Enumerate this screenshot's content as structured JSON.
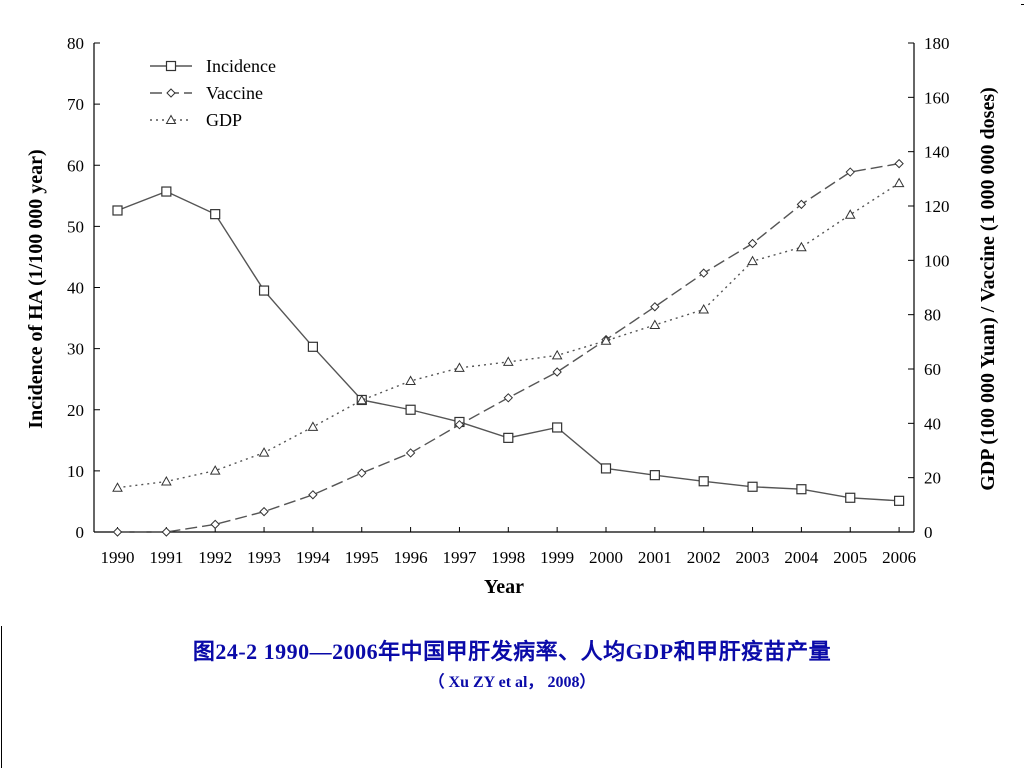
{
  "caption": "图24-2   1990—2006年中国甲肝发病率、人均GDP和甲肝疫苗产量",
  "source": "（ Xu ZY et al， 2008）",
  "chart_data": {
    "type": "line",
    "xlabel": "Year",
    "ylabel_left": "Incidence of HA (1/100 000 year)",
    "ylabel_right": "GDP (100 000 Yuan) / Vaccine (1 000 000 doses)",
    "x": [
      1990,
      1991,
      1992,
      1993,
      1994,
      1995,
      1996,
      1997,
      1998,
      1999,
      2000,
      2001,
      2002,
      2003,
      2004,
      2005,
      2006
    ],
    "ylim_left": [
      0,
      80
    ],
    "yticks_left": [
      0,
      10,
      20,
      30,
      40,
      50,
      60,
      70,
      80
    ],
    "ylim_right": [
      0,
      180
    ],
    "yticks_right": [
      0,
      20,
      40,
      60,
      80,
      100,
      120,
      140,
      160,
      180
    ],
    "grid": false,
    "legend_position": "top-left",
    "series": [
      {
        "name": "Incidence",
        "axis": "left",
        "marker": "square",
        "line_style": "solid",
        "values": [
          52.6,
          55.7,
          52.0,
          39.5,
          30.3,
          21.6,
          20.0,
          18.0,
          15.4,
          17.1,
          10.4,
          9.3,
          8.3,
          7.4,
          7.0,
          5.6,
          5.1
        ]
      },
      {
        "name": "Vaccine",
        "axis": "right",
        "marker": "diamond",
        "line_style": "dashed",
        "values": [
          0,
          0,
          2.8,
          7.5,
          13.7,
          21.7,
          29.1,
          39.5,
          49.4,
          58.9,
          70.8,
          82.9,
          95.3,
          106.2,
          120.6,
          132.5,
          135.6
        ]
      },
      {
        "name": "GDP",
        "axis": "right",
        "marker": "triangle",
        "line_style": "dotted",
        "values": [
          16.3,
          18.6,
          22.6,
          29.2,
          38.7,
          48.5,
          55.6,
          60.4,
          62.6,
          65.0,
          70.4,
          76.2,
          81.9,
          99.7,
          104.8,
          116.8,
          128.4
        ]
      }
    ]
  }
}
